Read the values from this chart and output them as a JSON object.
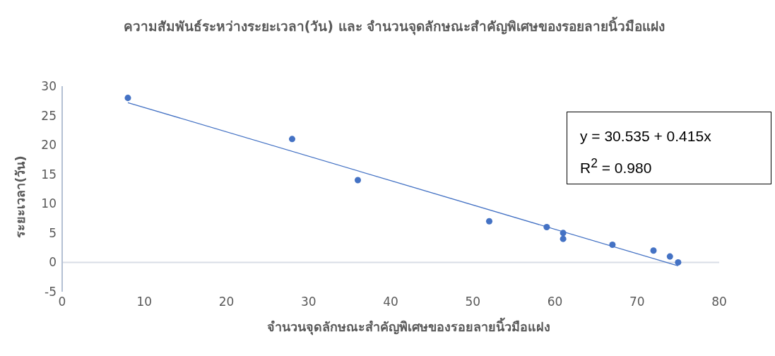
{
  "chart_data": {
    "type": "scatter",
    "title": "ความสัมพันธ์ระหว่างระยะเวลา(วัน) และ จำนวนจุดลักษณะสำคัญพิเศษของรอยลายนิ้วมือแฝง",
    "xlabel": "จำนวนจุดลักษณะสำคัญพิเศษของรอยลายนิ้วมือแฝง",
    "ylabel": "ระยะเวลา(วัน)",
    "x": [
      8,
      28,
      36,
      52,
      59,
      61,
      61,
      67,
      72,
      74,
      75
    ],
    "series": [
      {
        "color": "#4472c4",
        "marker": "circle",
        "values": [
          28,
          21,
          14,
          7,
          6,
          5,
          4,
          3,
          2,
          1,
          0
        ]
      },
      {
        "type": "line",
        "color": "#4472c4",
        "marker": "none",
        "x": [
          8,
          75
        ],
        "values": [
          27.2,
          -0.6
        ]
      }
    ],
    "annotations": [
      "y = 30.535 + 0.415x",
      "R$^{2}$ = 0.980"
    ],
    "xlim": [
      0,
      80
    ],
    "xticks": [
      0,
      10,
      20,
      30,
      40,
      50,
      60,
      70,
      80
    ],
    "ylim": [
      -5,
      30
    ],
    "yticks": [
      -5,
      0,
      5,
      10,
      15,
      20,
      25,
      30
    ],
    "ref_lines": [
      {
        "axis": "y",
        "value": 0,
        "color": "#d9dde6"
      }
    ],
    "grid": false
  }
}
